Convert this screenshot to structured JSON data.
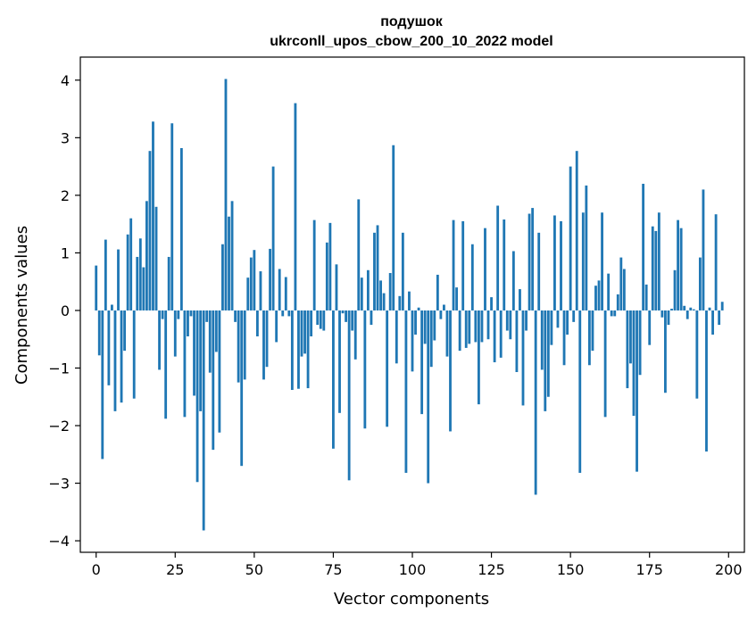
{
  "chart_data": {
    "type": "bar",
    "title_line1": "подушок",
    "title_line2": "ukrconll_upos_cbow_200_10_2022 model",
    "xlabel": "Vector components",
    "ylabel": "Components values",
    "xlim": [
      -5,
      205
    ],
    "ylim": [
      -4.2,
      4.4
    ],
    "xticks": [
      0,
      25,
      50,
      75,
      100,
      125,
      150,
      175,
      200
    ],
    "yticks": [
      -4,
      -3,
      -2,
      -1,
      0,
      1,
      2,
      3,
      4
    ],
    "xtick_labels": [
      "0",
      "25",
      "50",
      "75",
      "100",
      "125",
      "150",
      "175",
      "200"
    ],
    "ytick_labels": [
      "−4",
      "−3",
      "−2",
      "−1",
      "0",
      "1",
      "2",
      "3",
      "4"
    ],
    "bar_color": "#1f77b4",
    "grid": false,
    "values": [
      0.78,
      -0.78,
      -2.58,
      1.23,
      -1.3,
      0.1,
      -1.75,
      1.06,
      -1.6,
      -0.7,
      1.32,
      1.6,
      -1.53,
      0.93,
      1.25,
      0.75,
      1.9,
      2.77,
      3.28,
      1.8,
      -1.03,
      -0.15,
      -1.88,
      0.93,
      3.25,
      -0.8,
      -0.15,
      2.82,
      -1.85,
      -0.45,
      -0.1,
      -1.48,
      -2.98,
      -1.75,
      -3.82,
      -0.2,
      -1.08,
      -2.42,
      -0.72,
      -2.12,
      1.15,
      4.02,
      1.63,
      1.9,
      -0.2,
      -1.25,
      -2.7,
      -1.2,
      0.57,
      0.92,
      1.05,
      -0.45,
      0.68,
      -1.2,
      -0.98,
      1.07,
      2.5,
      -0.55,
      0.72,
      -0.1,
      0.58,
      -0.1,
      -1.38,
      3.6,
      -1.36,
      -0.8,
      -0.75,
      -1.35,
      -0.45,
      1.57,
      -0.25,
      -0.32,
      -0.35,
      1.18,
      1.52,
      -2.4,
      0.8,
      -1.78,
      -0.05,
      -0.2,
      -2.95,
      -0.35,
      -0.85,
      1.93,
      0.57,
      -2.05,
      0.7,
      -0.25,
      1.35,
      1.48,
      0.52,
      0.3,
      -2.02,
      0.65,
      2.87,
      -0.92,
      0.25,
      1.35,
      -2.82,
      0.33,
      -1.06,
      -0.42,
      0.05,
      -1.8,
      -0.58,
      -3.0,
      -0.98,
      -0.52,
      0.62,
      -0.15,
      0.1,
      -0.8,
      -2.1,
      1.57,
      0.4,
      -0.7,
      1.55,
      -0.65,
      -0.58,
      1.15,
      -0.55,
      -1.63,
      -0.55,
      1.43,
      -0.5,
      0.23,
      -0.9,
      1.82,
      -0.82,
      1.58,
      -0.35,
      -0.5,
      1.03,
      -1.07,
      0.37,
      -1.65,
      -0.35,
      1.68,
      1.78,
      -3.2,
      1.35,
      -1.03,
      -1.75,
      -1.5,
      -0.6,
      1.65,
      -0.3,
      1.55,
      -0.95,
      -0.42,
      2.5,
      -0.2,
      2.77,
      -2.82,
      1.7,
      2.17,
      -0.95,
      -0.7,
      0.43,
      0.52,
      1.7,
      -1.85,
      0.64,
      -0.1,
      -0.1,
      0.28,
      0.92,
      0.72,
      -1.35,
      -0.92,
      -1.83,
      -2.8,
      -1.12,
      2.2,
      0.45,
      -0.6,
      1.46,
      1.38,
      1.7,
      -0.12,
      -1.43,
      -0.25,
      0.03,
      0.7,
      1.57,
      1.43,
      0.08,
      -0.15,
      0.05,
      0.02,
      -1.53,
      0.92,
      2.1,
      -2.45,
      0.05,
      -0.42,
      1.67,
      -0.25,
      0.15
    ]
  }
}
